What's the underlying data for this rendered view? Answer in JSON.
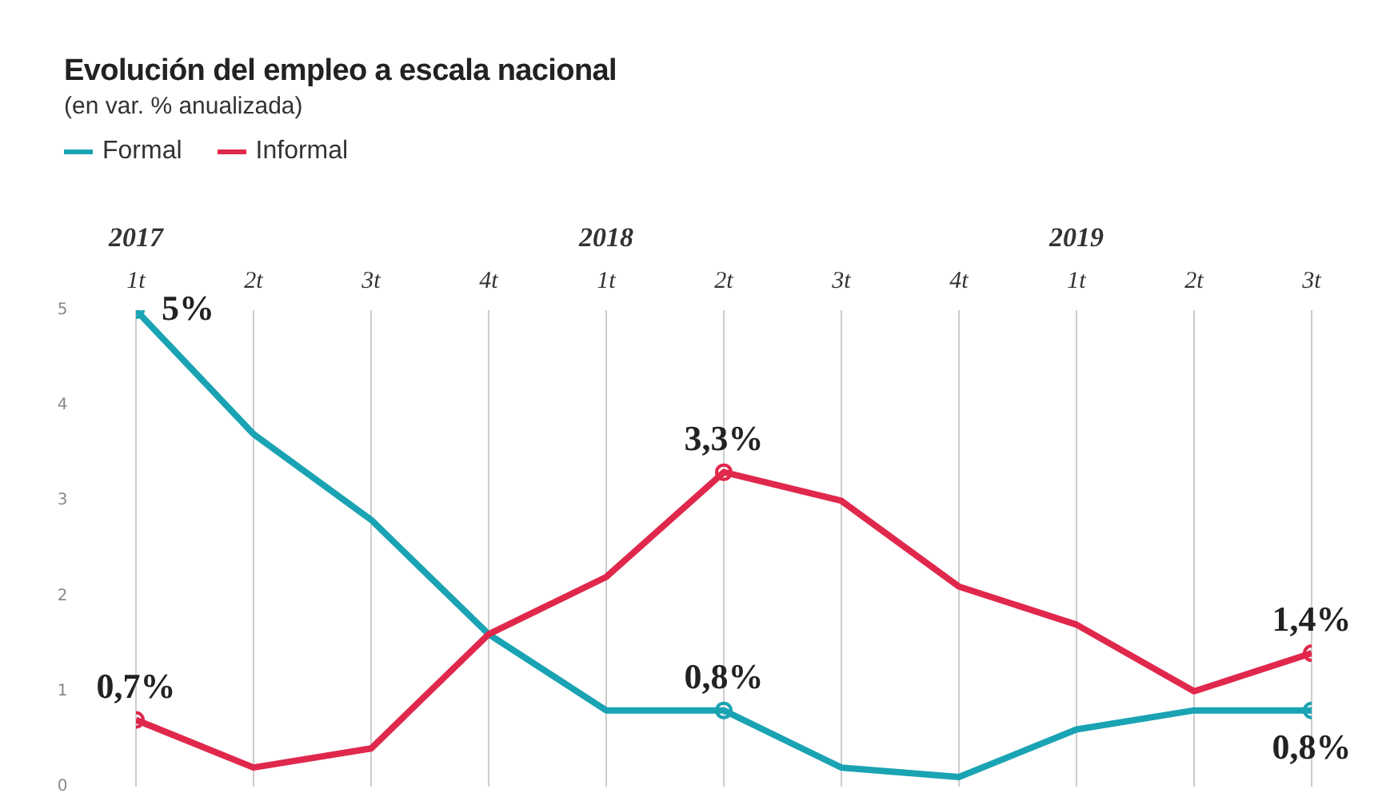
{
  "chart_data": {
    "type": "line",
    "title": "Evolución del empleo a escala nacional",
    "subtitle": "(en var. % anualizada)",
    "categories": [
      "2017\n1t",
      "2t",
      "3t",
      "4t",
      "2018\n1t",
      "2t",
      "3t",
      "4t",
      "2019\n1t",
      "2t",
      "3t"
    ],
    "series": [
      {
        "name": "Formal",
        "color": "#1aa3b3",
        "values": [
          5,
          3.7,
          2.8,
          1.6,
          0.8,
          0.8,
          0.2,
          0.1,
          0.6,
          0.8,
          0.8
        ],
        "value_labels": [
          "5%",
          null,
          null,
          null,
          null,
          "0,8%",
          null,
          null,
          null,
          null,
          "0,8%"
        ]
      },
      {
        "name": "Informal",
        "color": "#e0284c",
        "values": [
          0.7,
          0.2,
          0.4,
          1.6,
          2.2,
          3.3,
          3.0,
          2.1,
          1.7,
          1.0,
          1.4
        ],
        "value_labels": [
          "0,7%",
          null,
          null,
          null,
          null,
          "3,3%",
          null,
          null,
          null,
          null,
          "1,4%"
        ]
      }
    ],
    "ylim": [
      0,
      5
    ],
    "yticks": [
      0,
      1,
      2,
      3,
      4,
      5
    ],
    "grid": "x",
    "legend": "top left",
    "line_style": "solid"
  }
}
